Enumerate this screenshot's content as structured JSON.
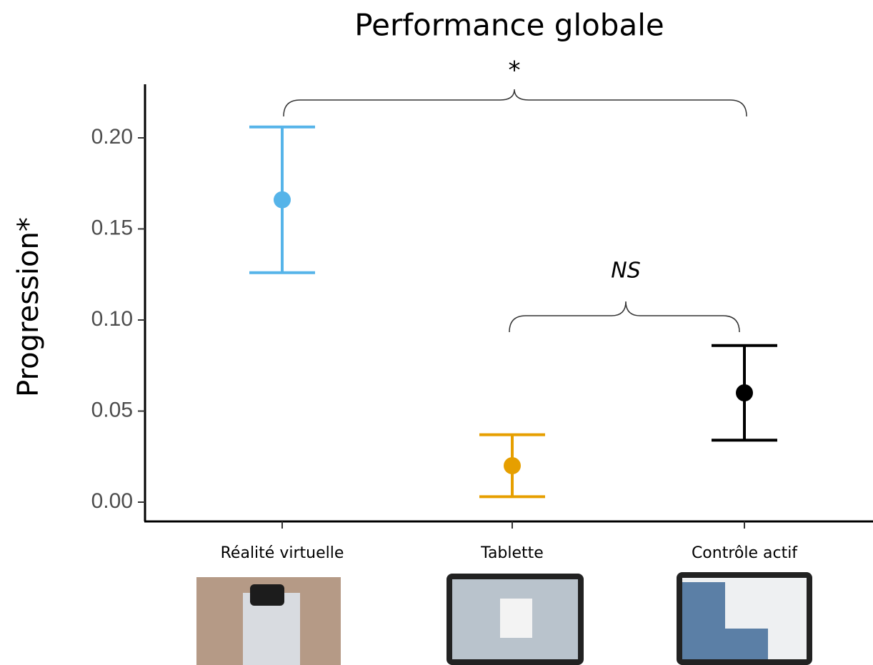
{
  "chart_data": {
    "type": "errorbar",
    "title": "Performance globale",
    "y_label": "Progression*",
    "categories": [
      "Réalité virtuelle",
      "Tablette",
      "Contrôle actif"
    ],
    "values": [
      0.166,
      0.02,
      0.06
    ],
    "errors": [
      0.04,
      0.017,
      0.026
    ],
    "colors": [
      "#56b4e9",
      "#e69f00",
      "#000000"
    ],
    "ylim": [
      -0.01,
      0.23
    ],
    "yticks": [
      {
        "value": 0,
        "label": "0.00"
      },
      {
        "value": 0.05,
        "label": "0.05"
      },
      {
        "value": 0.1,
        "label": "0.10"
      },
      {
        "value": 0.15,
        "label": "0.15"
      },
      {
        "value": 0.2,
        "label": "0.20"
      }
    ],
    "annotations": [
      "*",
      "NS"
    ]
  }
}
